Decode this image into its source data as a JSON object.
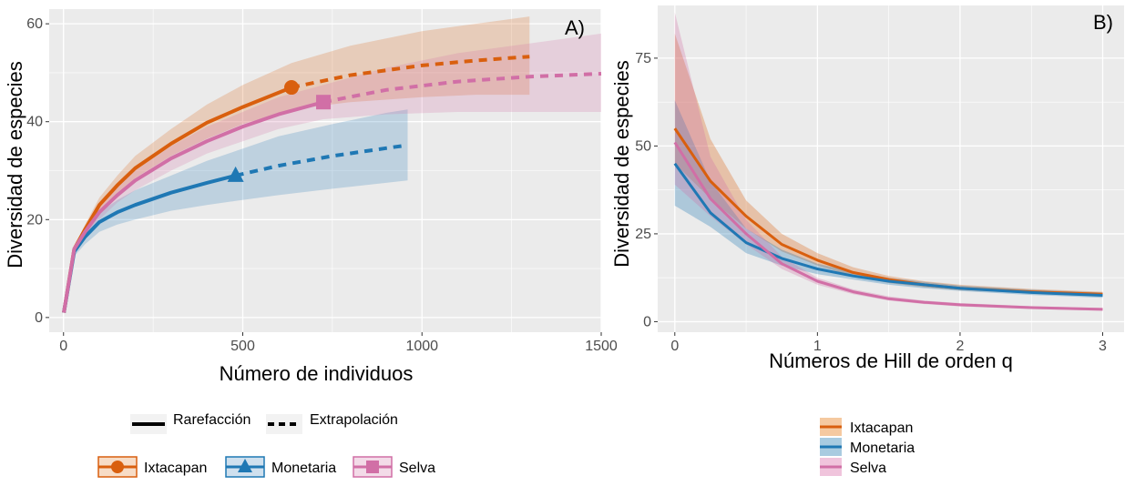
{
  "colors": {
    "Ixtacapan": "#d95f0e",
    "Monetaria": "#1f78b4",
    "Selva": "#d16fa6",
    "panel_bg": "#ebebeb",
    "grid": "#ffffff"
  },
  "chart_data": [
    {
      "type": "line",
      "panel_label": "A)",
      "xlabel": "Número de individuos",
      "ylabel": "Diversidad de especies",
      "xlim": [
        -40,
        1500
      ],
      "ylim": [
        -3,
        63
      ],
      "x_ticks": [
        0,
        500,
        1000,
        1500
      ],
      "x_tick_labels": [
        "0",
        "500",
        "1000",
        "1500"
      ],
      "y_ticks": [
        0,
        20,
        40,
        60
      ],
      "y_tick_labels": [
        "0",
        "20",
        "40",
        "60"
      ],
      "series": [
        {
          "name": "Ixtacapan",
          "marker": "circle",
          "reference_point": [
            636,
            47
          ],
          "rarefaction": [
            [
              1,
              1
            ],
            [
              30,
              14
            ],
            [
              60,
              18
            ],
            [
              100,
              23
            ],
            [
              150,
              27
            ],
            [
              200,
              30.5
            ],
            [
              300,
              35.5
            ],
            [
              400,
              39.8
            ],
            [
              500,
              43
            ],
            [
              636,
              47
            ]
          ],
          "extrapolation": [
            [
              636,
              47
            ],
            [
              800,
              49.5
            ],
            [
              1000,
              51.5
            ],
            [
              1150,
              52.5
            ],
            [
              1300,
              53.3
            ]
          ],
          "band_lower": [
            [
              1,
              1
            ],
            [
              30,
              13.5
            ],
            [
              60,
              17
            ],
            [
              100,
              21.5
            ],
            [
              150,
              25.5
            ],
            [
              200,
              28.5
            ],
            [
              300,
              33
            ],
            [
              400,
              36.5
            ],
            [
              500,
              39.5
            ],
            [
              636,
              42.5
            ],
            [
              800,
              44
            ],
            [
              1000,
              45
            ],
            [
              1150,
              45.5
            ],
            [
              1300,
              45.5
            ]
          ],
          "band_upper": [
            [
              1,
              1
            ],
            [
              30,
              14.5
            ],
            [
              60,
              19
            ],
            [
              100,
              24.5
            ],
            [
              150,
              29
            ],
            [
              200,
              33
            ],
            [
              300,
              38.5
            ],
            [
              400,
              43.5
            ],
            [
              500,
              47.5
            ],
            [
              636,
              52
            ],
            [
              800,
              55.5
            ],
            [
              1000,
              58.5
            ],
            [
              1150,
              60
            ],
            [
              1300,
              61.5
            ]
          ]
        },
        {
          "name": "Monetaria",
          "marker": "triangle",
          "reference_point": [
            480,
            29
          ],
          "rarefaction": [
            [
              1,
              1
            ],
            [
              30,
              13.5
            ],
            [
              60,
              16.5
            ],
            [
              100,
              19.5
            ],
            [
              150,
              21.5
            ],
            [
              200,
              23
            ],
            [
              300,
              25.5
            ],
            [
              400,
              27.5
            ],
            [
              480,
              29
            ]
          ],
          "extrapolation": [
            [
              480,
              29
            ],
            [
              600,
              31
            ],
            [
              750,
              33
            ],
            [
              900,
              34.6
            ],
            [
              960,
              35.2
            ]
          ],
          "band_lower": [
            [
              1,
              1
            ],
            [
              30,
              12.5
            ],
            [
              60,
              15
            ],
            [
              100,
              17.5
            ],
            [
              150,
              19
            ],
            [
              200,
              20
            ],
            [
              300,
              21.8
            ],
            [
              400,
              23
            ],
            [
              480,
              23.8
            ],
            [
              600,
              25
            ],
            [
              750,
              26.3
            ],
            [
              900,
              27.5
            ],
            [
              960,
              28
            ]
          ],
          "band_upper": [
            [
              1,
              1
            ],
            [
              30,
              14.5
            ],
            [
              60,
              18
            ],
            [
              100,
              21.5
            ],
            [
              150,
              24
            ],
            [
              200,
              26
            ],
            [
              300,
              29
            ],
            [
              400,
              32
            ],
            [
              480,
              34
            ],
            [
              600,
              37
            ],
            [
              750,
              39.5
            ],
            [
              900,
              41.8
            ],
            [
              960,
              42.5
            ]
          ]
        },
        {
          "name": "Selva",
          "marker": "square",
          "reference_point": [
            725,
            44
          ],
          "rarefaction": [
            [
              1,
              1
            ],
            [
              30,
              14
            ],
            [
              60,
              17.5
            ],
            [
              100,
              21.5
            ],
            [
              150,
              25
            ],
            [
              200,
              28
            ],
            [
              300,
              32.5
            ],
            [
              400,
              36
            ],
            [
              500,
              39
            ],
            [
              600,
              41.5
            ],
            [
              725,
              44
            ]
          ],
          "extrapolation": [
            [
              725,
              44
            ],
            [
              900,
              46.5
            ],
            [
              1100,
              48.2
            ],
            [
              1300,
              49.2
            ],
            [
              1500,
              49.8
            ]
          ],
          "band_lower": [
            [
              1,
              1
            ],
            [
              30,
              13.5
            ],
            [
              60,
              16.5
            ],
            [
              100,
              20
            ],
            [
              150,
              23.5
            ],
            [
              200,
              26
            ],
            [
              300,
              30
            ],
            [
              400,
              33.5
            ],
            [
              500,
              36
            ],
            [
              600,
              38.5
            ],
            [
              725,
              40.5
            ],
            [
              900,
              41.5
            ],
            [
              1100,
              42
            ],
            [
              1300,
              42
            ],
            [
              1500,
              42
            ]
          ],
          "band_upper": [
            [
              1,
              1
            ],
            [
              30,
              14.5
            ],
            [
              60,
              18.5
            ],
            [
              100,
              23
            ],
            [
              150,
              26.5
            ],
            [
              200,
              30
            ],
            [
              300,
              35
            ],
            [
              400,
              39
            ],
            [
              500,
              42
            ],
            [
              600,
              45
            ],
            [
              725,
              47.5
            ],
            [
              900,
              51
            ],
            [
              1100,
              54
            ],
            [
              1300,
              56
            ],
            [
              1500,
              58
            ]
          ]
        }
      ],
      "legend_linetypes": [
        "Rarefacción",
        "Extrapolación"
      ],
      "legend_series": [
        "Ixtacapan",
        "Monetaria",
        "Selva"
      ]
    },
    {
      "type": "line",
      "panel_label": "B)",
      "xlabel": "Números de Hill de orden q",
      "ylabel": "Diversidad de especies",
      "xlim": [
        -0.12,
        3.15
      ],
      "ylim": [
        -3,
        90
      ],
      "x_ticks": [
        0,
        1,
        2,
        3
      ],
      "x_tick_labels": [
        "0",
        "1",
        "2",
        "3"
      ],
      "y_ticks": [
        0,
        25,
        50,
        75
      ],
      "y_tick_labels": [
        "0",
        "25",
        "50",
        "75"
      ],
      "x": [
        0,
        0.25,
        0.5,
        0.75,
        1,
        1.25,
        1.5,
        1.75,
        2,
        2.5,
        3
      ],
      "series": [
        {
          "name": "Ixtacapan",
          "values": [
            55,
            40,
            30,
            22,
            17.5,
            14,
            12,
            10.5,
            9.5,
            8.5,
            7.8
          ],
          "lower": [
            45,
            35,
            26.5,
            20,
            16,
            13,
            11,
            9.8,
            9,
            8,
            7.2
          ],
          "upper": [
            82,
            52,
            34.5,
            25,
            19.5,
            15.5,
            13,
            11.5,
            10.5,
            9.3,
            8.5
          ]
        },
        {
          "name": "Monetaria",
          "values": [
            45,
            31,
            22.5,
            18,
            15,
            13,
            11.5,
            10.5,
            9.5,
            8.3,
            7.5
          ],
          "lower": [
            33,
            27,
            19.5,
            16,
            13.5,
            12,
            10.5,
            9.5,
            8.7,
            7.6,
            6.8
          ],
          "upper": [
            63,
            40,
            26.5,
            20.5,
            16.5,
            14.2,
            12.5,
            11.3,
            10.3,
            9.1,
            8.3
          ]
        },
        {
          "name": "Selva",
          "values": [
            51,
            35,
            25,
            16.5,
            11.5,
            8.5,
            6.5,
            5.5,
            4.8,
            4,
            3.5
          ],
          "lower": [
            39,
            30,
            22,
            15,
            10.5,
            7.8,
            6,
            5,
            4.3,
            3.6,
            3.1
          ],
          "upper": [
            88,
            47,
            29,
            18.5,
            12.5,
            9.2,
            7.2,
            6,
            5.3,
            4.4,
            3.9
          ]
        }
      ],
      "legend_series": [
        "Ixtacapan",
        "Monetaria",
        "Selva"
      ]
    }
  ]
}
